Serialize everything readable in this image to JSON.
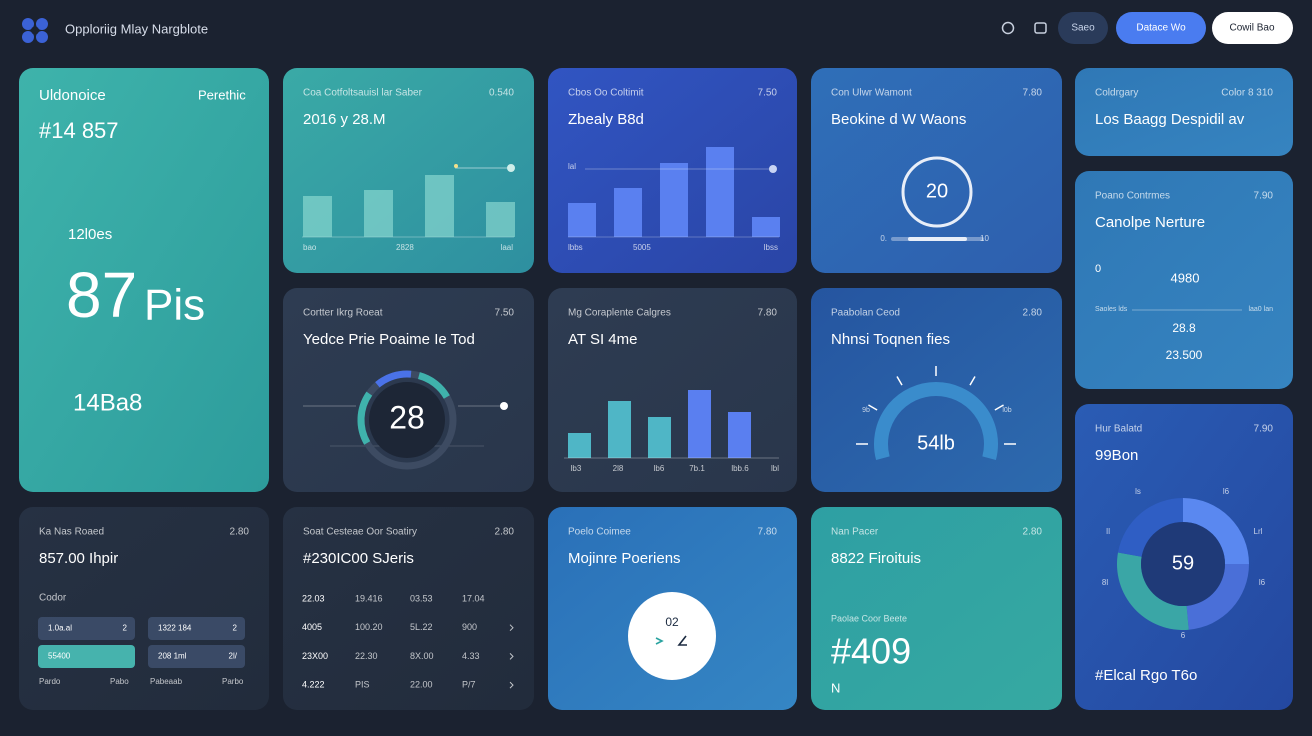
{
  "header": {
    "title": "Opploriig Mlay Nargblote",
    "buttons": [
      "Saeo",
      "Datace Wo",
      "Cowil Bao"
    ]
  },
  "cards": {
    "a": {
      "label": "Uldonoice",
      "tag": "Perethic",
      "value": "#14 857",
      "sub": "12l0es",
      "big": "87",
      "big_unit": "Pis",
      "foot": "14Ba8"
    },
    "b": {
      "label": "Coa Cotfoltsauisl lar Saber",
      "stat": "0.540",
      "title": "2016 y 28.M",
      "bars": [
        41,
        47,
        62,
        35
      ],
      "axis": [
        "bao",
        "2828",
        "laal"
      ]
    },
    "c": {
      "label": "Cbos Oo Coltimit",
      "stat": "7.50",
      "title": "Zbealy B8d",
      "legend": "lal",
      "bars": [
        34,
        49,
        74,
        90,
        20
      ],
      "axis": [
        "lbbs",
        "5005",
        "lbss"
      ]
    },
    "d": {
      "label": "Con Ulwr Wamont",
      "stat": "7.80",
      "title": "Beokine d W Waons",
      "value": "20",
      "min": "0.",
      "max": "10"
    },
    "e": {
      "label": "Coldrgary",
      "stat": "Color 8 310",
      "title": "Los Baagg Despidil av"
    },
    "f": {
      "label": "Poano Contrmes",
      "stat": "7.90",
      "title": "Canolpe Nerture",
      "marker": "0",
      "v1": "4980",
      "left": "Saoles lds",
      "right": "laa0 lan",
      "v2": "28.8",
      "v3": "23.500"
    },
    "g": {
      "label": "Cortter Ikrg Roeat",
      "stat": "7.50",
      "title": "Yedce Prie Poaime Ie Tod",
      "value": "28"
    },
    "h": {
      "label": "Mg Coraplente Calgres",
      "stat": "7.80",
      "title": "AT SI 4me",
      "bars": [
        25,
        57,
        41,
        68,
        46
      ],
      "axis": [
        "lb3",
        "2l8",
        "lb6",
        "7b.1",
        "lbb.6",
        "lbl"
      ]
    },
    "i": {
      "label": "Paabolan Ceod",
      "stat": "2.80",
      "title": "Nhnsi Toqnen fies",
      "value": "54lb",
      "left": "9b",
      "right": "l0b"
    },
    "j": {
      "label": "Hur Balatd",
      "stat": "7.90",
      "title": "99Bon",
      "value": "59",
      "ring": [
        "ls",
        "l6",
        "Il",
        "Lrl",
        "8l",
        "l6",
        "6"
      ],
      "foot": "#Elcal Rgo T6o"
    },
    "k": {
      "label": "Ka Nas Roaed",
      "stat": "2.80",
      "title": "857.00 Ihpir",
      "sub": "Codor",
      "chips": [
        {
          "text": "1.0a.al",
          "end": "2"
        },
        {
          "text": "1322 184",
          "end": "2"
        },
        {
          "text": "55400"
        },
        {
          "text": "208 1ml",
          "end": "2l/"
        }
      ],
      "foot": [
        "Pardo",
        "Pabo",
        "Pabeaab",
        "Parbo"
      ]
    },
    "l": {
      "label": "Soat Cesteae Oor Soatiry",
      "stat": "2.80",
      "title": "#230IC00 SJeris",
      "rows": [
        [
          "22.03",
          "19.416",
          "03.53",
          "17.04"
        ],
        [
          "4005",
          "100.20",
          "5L.22",
          "900"
        ],
        [
          "23X00",
          "22.30",
          "8X.00",
          "4.33"
        ],
        [
          "4.222",
          "PIS",
          "22.00",
          "P/7"
        ]
      ]
    },
    "m": {
      "label": "Poelo Coimee",
      "stat": "7.80",
      "title": "Mojinre Poeriens",
      "value": "02"
    },
    "n": {
      "label": "Nan Pacer",
      "stat": "2.80",
      "title": "8822 Firoituis",
      "sub": "Paolae Coor Beete",
      "value": "#409",
      "foot": "N"
    }
  }
}
